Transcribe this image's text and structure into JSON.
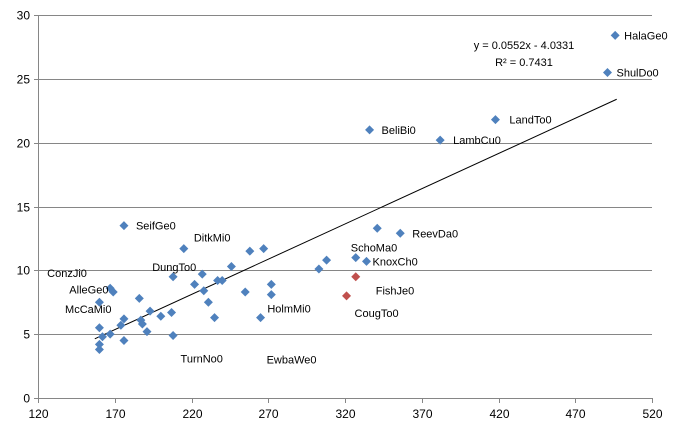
{
  "chart_data": {
    "type": "scatter",
    "title": "",
    "xlabel": "",
    "ylabel": "",
    "xlim": [
      120,
      520
    ],
    "ylim": [
      0,
      30
    ],
    "x_ticks": [
      120,
      170,
      220,
      270,
      320,
      370,
      420,
      470,
      520
    ],
    "y_ticks": [
      0,
      5,
      10,
      15,
      20,
      25,
      30
    ],
    "grid": "horizontal",
    "colors": {
      "point": "#4F81BD",
      "highlight": "#C0504D",
      "grid": "#868686",
      "axis": "#868686",
      "trendline": "#000000"
    },
    "trendline": {
      "slope": 0.0552,
      "intercept": -4.0331,
      "x_range": [
        157,
        497
      ],
      "equation": "y = 0.0552x - 4.0331",
      "r_squared": "R² = 0.7431"
    },
    "points": [
      {
        "x": 496,
        "y": 28.4,
        "label": "HalaGe0"
      },
      {
        "x": 491,
        "y": 25.5,
        "label": "ShulDo0"
      },
      {
        "x": 418,
        "y": 21.8,
        "label": "LandTo0"
      },
      {
        "x": 336,
        "y": 21.0,
        "label": "BeliBi0"
      },
      {
        "x": 382,
        "y": 20.2,
        "label": "LambCu0"
      },
      {
        "x": 176,
        "y": 13.5,
        "label": "SeifGe0"
      },
      {
        "x": 341,
        "y": 13.3
      },
      {
        "x": 356,
        "y": 12.9,
        "label": "ReevDa0"
      },
      {
        "x": 215,
        "y": 11.7,
        "label": "DitkMi0"
      },
      {
        "x": 258,
        "y": 11.5
      },
      {
        "x": 267,
        "y": 11.7
      },
      {
        "x": 327,
        "y": 11.0,
        "label": "SchoMa0"
      },
      {
        "x": 334,
        "y": 10.7,
        "label": "KnoxCh0"
      },
      {
        "x": 308,
        "y": 10.8
      },
      {
        "x": 303,
        "y": 10.1
      },
      {
        "x": 246,
        "y": 10.3
      },
      {
        "x": 227,
        "y": 9.7,
        "label": "DungTo0"
      },
      {
        "x": 208,
        "y": 9.5
      },
      {
        "x": 327,
        "y": 9.5,
        "label": "FishJe0",
        "highlight": true
      },
      {
        "x": 237,
        "y": 9.2
      },
      {
        "x": 240,
        "y": 9.2
      },
      {
        "x": 222,
        "y": 8.9
      },
      {
        "x": 272,
        "y": 8.9
      },
      {
        "x": 167,
        "y": 8.6,
        "label": "ConzJi0"
      },
      {
        "x": 169,
        "y": 8.3
      },
      {
        "x": 228,
        "y": 8.4
      },
      {
        "x": 255,
        "y": 8.3
      },
      {
        "x": 272,
        "y": 8.1,
        "label": "HolmMi0"
      },
      {
        "x": 321,
        "y": 8.0,
        "label": "CougTo0",
        "highlight": true
      },
      {
        "x": 186,
        "y": 7.8,
        "label": "AlleGe0"
      },
      {
        "x": 160,
        "y": 7.5
      },
      {
        "x": 231,
        "y": 7.5
      },
      {
        "x": 193,
        "y": 6.8,
        "label": "McCaMi0"
      },
      {
        "x": 207,
        "y": 6.7
      },
      {
        "x": 200,
        "y": 6.4
      },
      {
        "x": 235,
        "y": 6.3,
        "label": "TurnNo0"
      },
      {
        "x": 265,
        "y": 6.3,
        "label": "EwbaWe0"
      },
      {
        "x": 176,
        "y": 6.2
      },
      {
        "x": 187,
        "y": 6.1
      },
      {
        "x": 188,
        "y": 5.8
      },
      {
        "x": 174,
        "y": 5.7
      },
      {
        "x": 160,
        "y": 5.5
      },
      {
        "x": 191,
        "y": 5.2
      },
      {
        "x": 167,
        "y": 5.0
      },
      {
        "x": 208,
        "y": 4.9
      },
      {
        "x": 162,
        "y": 4.8
      },
      {
        "x": 176,
        "y": 4.5
      },
      {
        "x": 160,
        "y": 4.2
      },
      {
        "x": 160,
        "y": 3.8
      }
    ]
  }
}
